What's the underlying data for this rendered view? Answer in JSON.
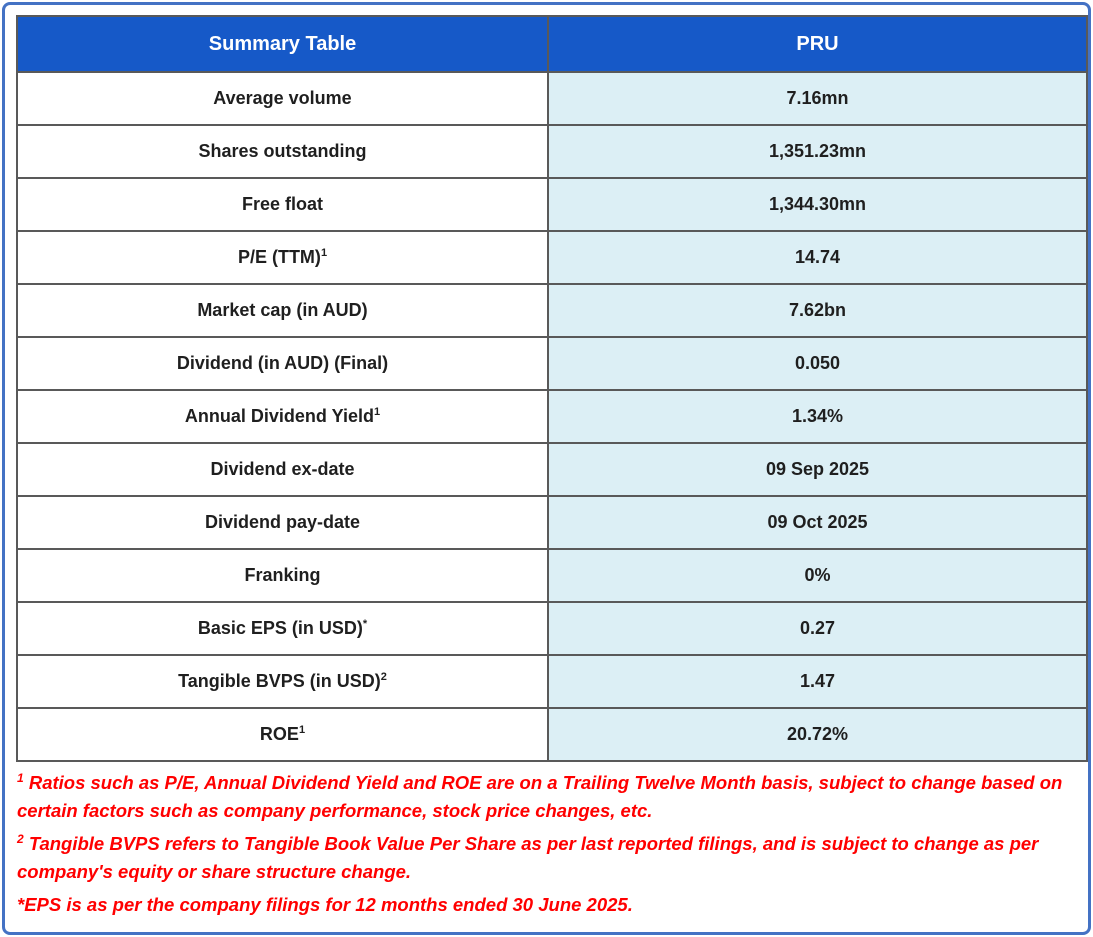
{
  "ticker": "PRU",
  "header": {
    "col1": "Summary Table",
    "col2": "PRU"
  },
  "rows": [
    {
      "label": "Average volume",
      "sup": "",
      "value": "7.16mn"
    },
    {
      "label": "Shares outstanding",
      "sup": "",
      "value": "1,351.23mn"
    },
    {
      "label": "Free float",
      "sup": "",
      "value": "1,344.30mn"
    },
    {
      "label": "P/E (TTM)",
      "sup": "1",
      "value": "14.74"
    },
    {
      "label": "Market cap (in AUD)",
      "sup": "",
      "value": "7.62bn"
    },
    {
      "label": "Dividend (in AUD) (Final)",
      "sup": "",
      "value": "0.050"
    },
    {
      "label": "Annual Dividend Yield",
      "sup": "1",
      "value": "1.34%"
    },
    {
      "label": "Dividend ex-date",
      "sup": "",
      "value": "09 Sep 2025"
    },
    {
      "label": "Dividend pay-date",
      "sup": "",
      "value": "09 Oct 2025"
    },
    {
      "label": "Franking",
      "sup": "",
      "value": "0%"
    },
    {
      "label": "Basic EPS (in USD)",
      "sup": "*",
      "value": "0.27"
    },
    {
      "label": "Tangible BVPS (in USD)",
      "sup": "2",
      "value": "1.47"
    },
    {
      "label": "ROE",
      "sup": "1",
      "value": "20.72%"
    }
  ],
  "footnotes": [
    {
      "sup": "1",
      "text": "Ratios such as P/E, Annual Dividend Yield and ROE are on a Trailing Twelve Month basis, subject to change based on certain factors such as company performance, stock price changes, etc."
    },
    {
      "sup": "2",
      "text": "Tangible BVPS refers to Tangible Book Value Per Share as per last reported filings, and is subject to change as per company's equity or share structure change."
    },
    {
      "sup": "",
      "text": "*EPS is as per the company filings for 12 months ended 30 June 2025."
    }
  ],
  "colors": {
    "frame_blue": "#4472C4",
    "header_blue": "#1659C8",
    "value_cell_bg": "#DCEFF5",
    "grid_line": "#595959",
    "cell_text": "#1F1F1F",
    "footnote_red": "#FF0000"
  },
  "chart_data": {
    "type": "table",
    "title": "Summary Table",
    "columns": [
      "Summary Table",
      "PRU"
    ],
    "rows": [
      [
        "Average volume",
        "7.16mn"
      ],
      [
        "Shares outstanding",
        "1,351.23mn"
      ],
      [
        "Free float",
        "1,344.30mn"
      ],
      [
        "P/E (TTM)¹",
        "14.74"
      ],
      [
        "Market cap (in AUD)",
        "7.62bn"
      ],
      [
        "Dividend (in AUD) (Final)",
        "0.050"
      ],
      [
        "Annual Dividend Yield¹",
        "1.34%"
      ],
      [
        "Dividend ex-date",
        "09 Sep 2025"
      ],
      [
        "Dividend pay-date",
        "09 Oct 2025"
      ],
      [
        "Franking",
        "0%"
      ],
      [
        "Basic EPS (in USD)*",
        "0.27"
      ],
      [
        "Tangible BVPS (in USD)²",
        "1.47"
      ],
      [
        "ROE¹",
        "20.72%"
      ]
    ],
    "notes": [
      "¹ Ratios such as P/E, Annual Dividend Yield and ROE are on a Trailing Twelve Month basis, subject to change based on certain factors such as company performance, stock price changes, etc.",
      "² Tangible BVPS refers to Tangible Book Value Per Share as per last reported filings, and is subject to change as per company's equity or share structure change.",
      "*EPS is as per the company filings for 12 months ended 30 June 2025."
    ]
  }
}
